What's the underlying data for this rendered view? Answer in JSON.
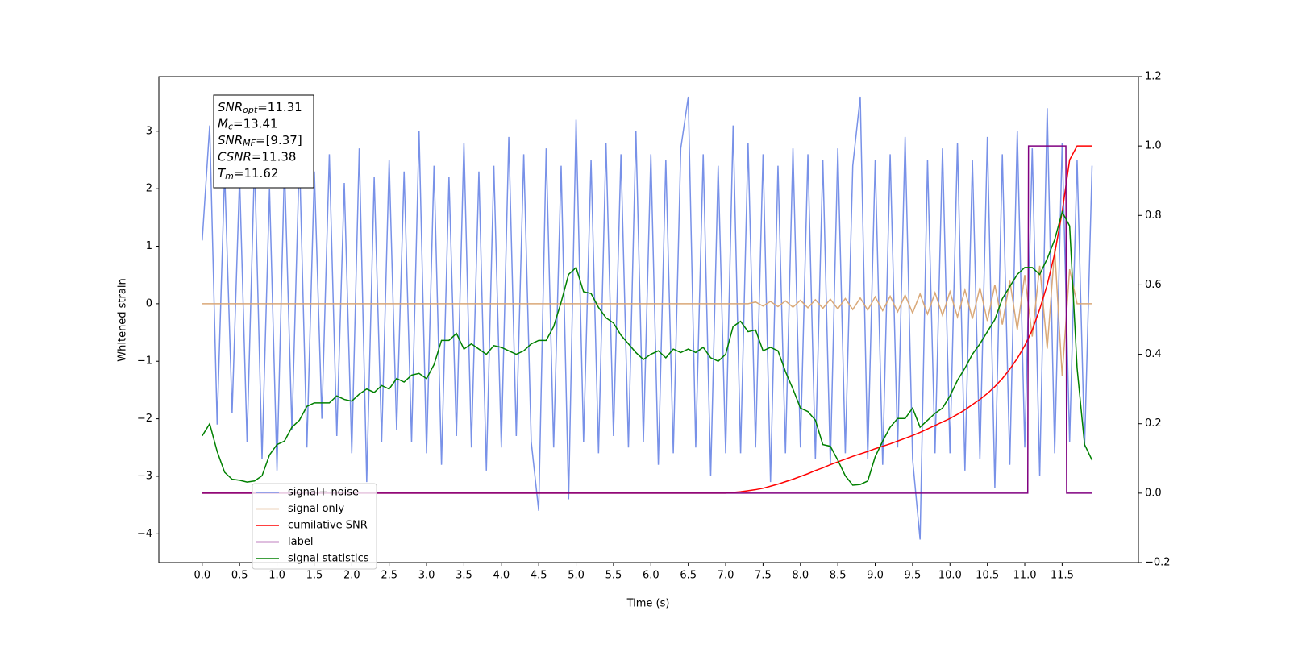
{
  "chart_data": {
    "type": "line",
    "x_label": "Time (s)",
    "y_label": "Whitened strain",
    "x": [
      0,
      0.1,
      0.2,
      0.3,
      0.4,
      0.5,
      0.6,
      0.7,
      0.8,
      0.9,
      1,
      1.1,
      1.2,
      1.3,
      1.4,
      1.5,
      1.6,
      1.7,
      1.8,
      1.9,
      2,
      2.1,
      2.2,
      2.3,
      2.4,
      2.5,
      2.6,
      2.7,
      2.8,
      2.9,
      3,
      3.1,
      3.2,
      3.3,
      3.4,
      3.5,
      3.6,
      3.7,
      3.8,
      3.9,
      4,
      4.1,
      4.2,
      4.3,
      4.4,
      4.5,
      4.6,
      4.7,
      4.8,
      4.9,
      5,
      5.1,
      5.2,
      5.3,
      5.4,
      5.5,
      5.6,
      5.7,
      5.8,
      5.9,
      6,
      6.1,
      6.2,
      6.3,
      6.4,
      6.5,
      6.6,
      6.7,
      6.8,
      6.9,
      7,
      7.1,
      7.2,
      7.3,
      7.4,
      7.5,
      7.6,
      7.7,
      7.8,
      7.9,
      8,
      8.1,
      8.2,
      8.3,
      8.4,
      8.5,
      8.6,
      8.7,
      8.8,
      8.9,
      9,
      9.1,
      9.2,
      9.3,
      9.4,
      9.5,
      9.6,
      9.7,
      9.8,
      9.9,
      10,
      10.1,
      10.2,
      10.3,
      10.4,
      10.5,
      10.6,
      10.7,
      10.8,
      10.9,
      11,
      11.1,
      11.2,
      11.3,
      11.4,
      11.5,
      11.6,
      11.7,
      11.8,
      11.9
    ],
    "series": [
      {
        "name": "signal+ noise",
        "color": "#7891e8",
        "values": [
          1.1,
          3.1,
          -2.1,
          2.3,
          -1.9,
          2.2,
          -2.4,
          2.5,
          -2.7,
          2.0,
          -2.9,
          2.4,
          -2.2,
          2.6,
          -2.5,
          2.3,
          -2.0,
          2.6,
          -2.3,
          2.1,
          -2.6,
          2.7,
          -3.1,
          2.2,
          -2.4,
          2.5,
          -2.2,
          2.3,
          -2.4,
          3.0,
          -2.6,
          2.4,
          -2.8,
          2.2,
          -2.3,
          2.8,
          -2.5,
          2.3,
          -2.9,
          2.4,
          -2.5,
          2.9,
          -2.3,
          2.6,
          -2.4,
          -3.6,
          2.7,
          -2.5,
          2.4,
          -3.4,
          3.2,
          -2.4,
          2.5,
          -2.6,
          2.8,
          -2.3,
          2.6,
          -2.5,
          3.0,
          -2.4,
          2.6,
          -2.8,
          2.5,
          -2.6,
          2.7,
          3.6,
          -2.5,
          2.6,
          -3.0,
          2.4,
          -2.6,
          3.1,
          -2.6,
          2.8,
          -2.5,
          2.6,
          -3.1,
          2.4,
          -2.6,
          2.7,
          -2.5,
          2.6,
          -2.7,
          2.5,
          -2.8,
          2.7,
          -2.6,
          2.4,
          3.6,
          -2.7,
          2.5,
          -2.8,
          2.6,
          -2.5,
          2.9,
          -2.7,
          -4.1,
          2.5,
          -2.6,
          2.7,
          -2.6,
          2.8,
          -2.9,
          2.5,
          -2.7,
          2.9,
          -3.2,
          2.6,
          -2.8,
          3.0,
          -2.5,
          2.7,
          -3.0,
          3.4,
          -2.6,
          2.8,
          -2.4,
          2.5,
          -2.5,
          2.4
        ]
      },
      {
        "name": "signal only",
        "color": "#d9a878",
        "values": [
          0,
          0,
          0,
          0,
          0,
          0,
          0,
          0,
          0,
          0,
          0,
          0,
          0,
          0,
          0,
          0,
          0,
          0,
          0,
          0,
          0,
          0,
          0,
          0,
          0,
          0,
          0,
          0,
          0,
          0,
          0,
          0,
          0,
          0,
          0,
          0,
          0,
          0,
          0,
          0,
          0,
          0,
          0,
          0,
          0,
          0,
          0,
          0,
          0,
          0,
          0,
          0,
          0,
          0,
          0,
          0,
          0,
          0,
          0,
          0,
          0,
          0,
          0,
          0,
          0,
          0,
          0,
          0,
          0,
          0,
          0,
          0,
          0,
          0,
          0.03,
          -0.04,
          0.04,
          -0.05,
          0.05,
          -0.06,
          0.06,
          -0.07,
          0.07,
          -0.08,
          0.08,
          -0.09,
          0.09,
          -0.1,
          0.1,
          -0.11,
          0.12,
          -0.12,
          0.13,
          -0.14,
          0.15,
          -0.16,
          0.17,
          -0.18,
          0.19,
          -0.2,
          0.21,
          -0.23,
          0.24,
          -0.26,
          0.28,
          -0.3,
          0.33,
          -0.36,
          0.4,
          -0.45,
          0.5,
          -0.57,
          0.66,
          -0.78,
          0.95,
          -1.25,
          0.6,
          0,
          0,
          0
        ]
      },
      {
        "name": "cumilative SNR",
        "color": "#ff0000",
        "axis": "y2",
        "values": [
          0,
          0,
          0,
          0,
          0,
          0,
          0,
          0,
          0,
          0,
          0,
          0,
          0,
          0,
          0,
          0,
          0,
          0,
          0,
          0,
          0,
          0,
          0,
          0,
          0,
          0,
          0,
          0,
          0,
          0,
          0,
          0,
          0,
          0,
          0,
          0,
          0,
          0,
          0,
          0,
          0,
          0,
          0,
          0,
          0,
          0,
          0,
          0,
          0,
          0,
          0,
          0,
          0,
          0,
          0,
          0,
          0,
          0,
          0,
          0,
          0,
          0,
          0,
          0,
          0,
          0,
          0,
          0,
          0,
          0,
          0,
          0.002,
          0.004,
          0.007,
          0.01,
          0.014,
          0.02,
          0.026,
          0.033,
          0.04,
          0.048,
          0.056,
          0.065,
          0.073,
          0.082,
          0.09,
          0.098,
          0.106,
          0.113,
          0.12,
          0.128,
          0.135,
          0.142,
          0.15,
          0.158,
          0.166,
          0.175,
          0.185,
          0.195,
          0.205,
          0.215,
          0.227,
          0.24,
          0.255,
          0.27,
          0.287,
          0.307,
          0.33,
          0.357,
          0.388,
          0.425,
          0.47,
          0.53,
          0.6,
          0.69,
          0.81,
          0.96,
          1,
          1,
          1
        ]
      },
      {
        "name": "label",
        "color": "#800080",
        "axis": "y2",
        "x": [
          0,
          11.04,
          11.05,
          11.55,
          11.56,
          11.9
        ],
        "values": [
          0,
          0,
          1,
          1,
          0,
          0
        ]
      },
      {
        "name": "signal statistics",
        "color": "#008000",
        "axis": "y2",
        "values": [
          0.165,
          0.2,
          0.12,
          0.06,
          0.04,
          0.037,
          0.032,
          0.035,
          0.05,
          0.11,
          0.14,
          0.15,
          0.19,
          0.21,
          0.25,
          0.26,
          0.26,
          0.26,
          0.28,
          0.27,
          0.265,
          0.285,
          0.3,
          0.29,
          0.31,
          0.3,
          0.33,
          0.32,
          0.34,
          0.345,
          0.33,
          0.37,
          0.44,
          0.44,
          0.46,
          0.415,
          0.43,
          0.415,
          0.4,
          0.425,
          0.42,
          0.41,
          0.4,
          0.41,
          0.43,
          0.44,
          0.44,
          0.48,
          0.55,
          0.63,
          0.65,
          0.58,
          0.575,
          0.535,
          0.505,
          0.49,
          0.455,
          0.43,
          0.405,
          0.385,
          0.4,
          0.41,
          0.39,
          0.415,
          0.405,
          0.415,
          0.405,
          0.42,
          0.39,
          0.38,
          0.4,
          0.48,
          0.495,
          0.465,
          0.47,
          0.41,
          0.42,
          0.41,
          0.35,
          0.3,
          0.245,
          0.235,
          0.21,
          0.14,
          0.135,
          0.095,
          0.05,
          0.023,
          0.025,
          0.035,
          0.105,
          0.15,
          0.19,
          0.215,
          0.215,
          0.245,
          0.19,
          0.21,
          0.23,
          0.245,
          0.28,
          0.325,
          0.36,
          0.4,
          0.43,
          0.465,
          0.5,
          0.56,
          0.595,
          0.63,
          0.65,
          0.65,
          0.63,
          0.675,
          0.73,
          0.81,
          0.77,
          0.36,
          0.14,
          0.095
        ]
      }
    ],
    "xlim": [
      -0.58,
      12.52
    ],
    "xticks": [
      {
        "value": 0,
        "label": "0.0"
      },
      0.5,
      {
        "value": 1,
        "label": "1.0"
      },
      1.5,
      {
        "value": 2,
        "label": "2.0"
      },
      2.5,
      {
        "value": 3,
        "label": "3.0"
      },
      3.5,
      {
        "value": 4,
        "label": "4.0"
      },
      4.5,
      {
        "value": 5,
        "label": "5.0"
      },
      5.5,
      {
        "value": 6,
        "label": "6.0"
      },
      6.5,
      {
        "value": 7,
        "label": "7.0"
      },
      7.5,
      {
        "value": 8,
        "label": "8.0"
      },
      8.5,
      {
        "value": 9,
        "label": "9.0"
      },
      9.5,
      {
        "value": 10,
        "label": "10.0"
      },
      10.5,
      {
        "value": 11,
        "label": "11.0"
      },
      11.5
    ],
    "ylim": [
      -4.5,
      3.95
    ],
    "yticks": [
      {
        "value": -4,
        "label": "−4"
      },
      {
        "value": -3,
        "label": "−3"
      },
      {
        "value": -2,
        "label": "−2"
      },
      {
        "value": -1,
        "label": "−1"
      },
      0,
      1,
      2,
      3
    ],
    "y2lim": [
      -0.2,
      1.2
    ],
    "y2ticks": [
      {
        "value": -0.2,
        "label": "−0.2"
      },
      {
        "value": 0,
        "label": "0.0"
      },
      0.2,
      0.4,
      0.6,
      0.8,
      {
        "value": 1,
        "label": "1.0"
      },
      1.2
    ],
    "legend": "lower left",
    "annotation": [
      {
        "text": "SNR",
        "sub": "opt",
        "rest": "=11.31"
      },
      {
        "text": "M",
        "sub": "c",
        "rest": "=13.41"
      },
      {
        "text": "SNR",
        "sub": "MF",
        "rest": "=[9.37]"
      },
      {
        "text": "CSNR",
        "rest": "=11.38"
      },
      {
        "text": "T",
        "sub": "m",
        "rest": "=11.62"
      }
    ]
  }
}
